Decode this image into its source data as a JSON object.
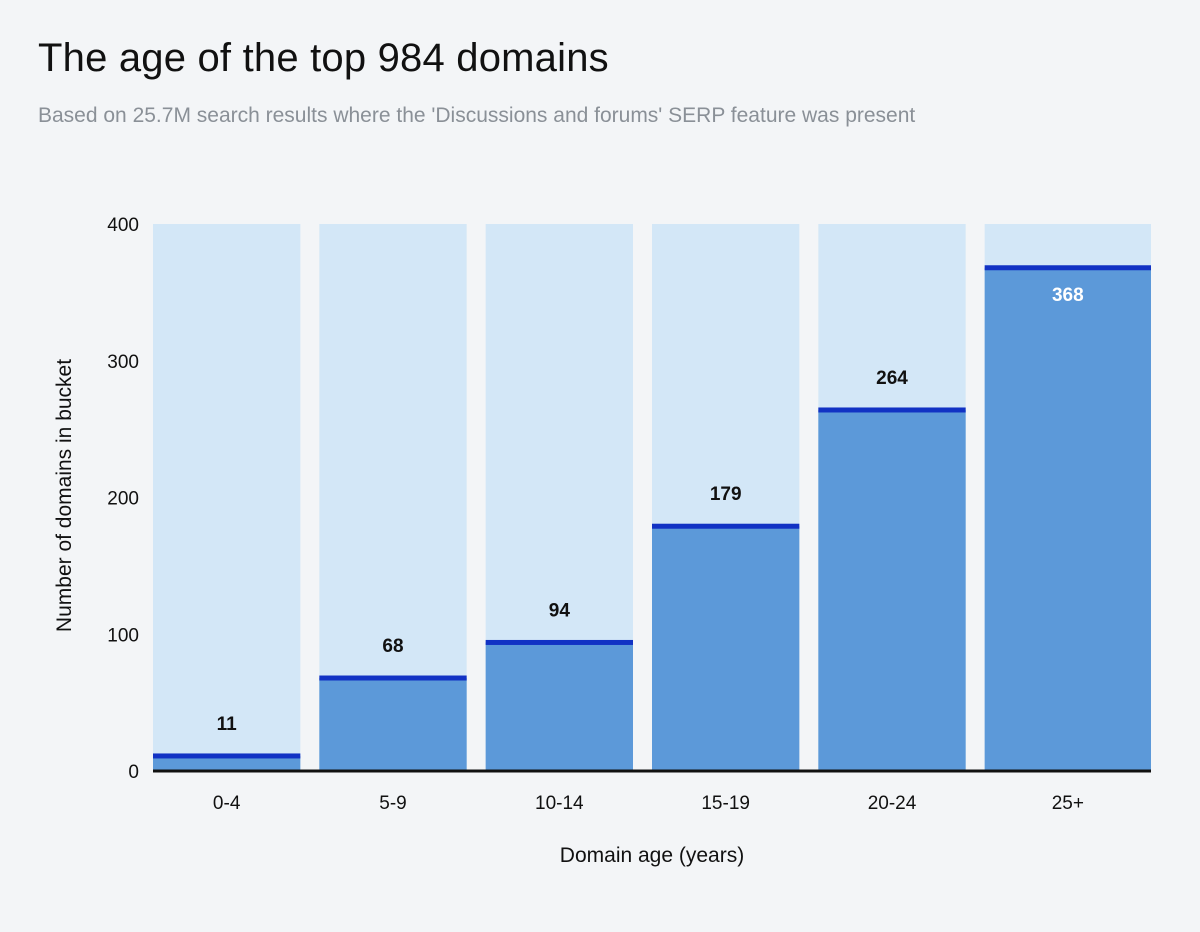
{
  "header": {
    "title": "The age of the top 984 domains",
    "subtitle": "Based on 25.7M search results where the 'Discussions and forums' SERP feature was present"
  },
  "chart_data": {
    "type": "bar",
    "categories": [
      "0-4",
      "5-9",
      "10-14",
      "15-19",
      "20-24",
      "25+"
    ],
    "values": [
      11,
      68,
      94,
      179,
      264,
      368
    ],
    "data_labels": [
      "11",
      "68",
      "94",
      "179",
      "264",
      "368"
    ],
    "xlabel": "Domain age (years)",
    "ylabel": "Number of domains in bucket",
    "ylim": [
      0,
      400
    ],
    "yticks": [
      "0",
      "100",
      "200",
      "300",
      "400"
    ],
    "grid": false,
    "legend": "none",
    "colors": {
      "background_bar": "#d3e7f7",
      "bar_fill": "#5c99d9",
      "bar_cap": "#1132c4",
      "axis": "#111111",
      "label_dark": "#111111",
      "label_light": "#ffffff"
    }
  }
}
